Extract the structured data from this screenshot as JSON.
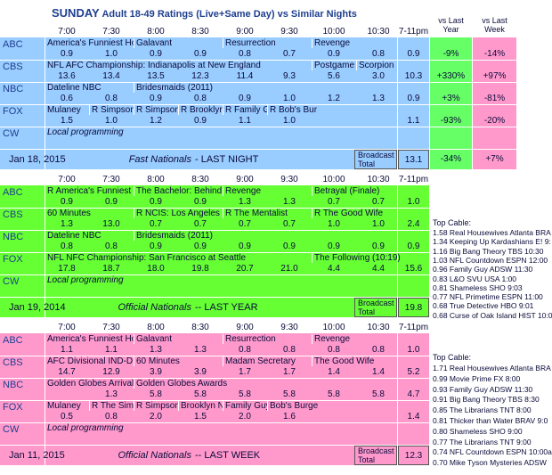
{
  "header": {
    "day": "SUNDAY",
    "title": "Adult 18-49 Ratings (Live+Same Day) vs Similar Nights"
  },
  "time_slots": [
    "7:00",
    "7:30",
    "8:00",
    "8:30",
    "9:00",
    "9:30",
    "10:00",
    "10:30"
  ],
  "total_header": "7-11pm",
  "vs_year_header": "vs Last Year",
  "vs_week_header": "vs Last Week",
  "blocks": [
    {
      "rows": [
        {
          "network": "ABC",
          "shows": [
            "America's Funniest Home",
            null,
            "Galavant",
            null,
            "Resurrection",
            null,
            "Revenge",
            null
          ],
          "ratings": [
            "0.9",
            "1.0",
            "0.9",
            "0.9",
            "0.8",
            "0.7",
            "0.9",
            "0.8"
          ],
          "total": "0.9",
          "vs_year": "-9%",
          "vs_week": "-14%"
        },
        {
          "network": "CBS",
          "shows": [
            "NFL AFC Championship: Indianapolis at New England",
            null,
            null,
            null,
            null,
            null,
            "Postgame",
            "Scorpion"
          ],
          "ratings": [
            "13.6",
            "13.4",
            "13.5",
            "12.3",
            "11.4",
            "9.3",
            "5.6",
            "3.0"
          ],
          "total": "10.3",
          "vs_year": "+330%",
          "vs_week": "+97%"
        },
        {
          "network": "NBC",
          "shows": [
            "Dateline NBC",
            null,
            "Bridesmaids (2011)",
            null,
            null,
            null,
            null,
            null
          ],
          "ratings": [
            "0.6",
            "0.8",
            "0.9",
            "0.8",
            "0.9",
            "1.0",
            "1.2",
            "1.3"
          ],
          "total": "0.9",
          "vs_year": "+3%",
          "vs_week": "-81%"
        },
        {
          "network": "FOX",
          "shows": [
            "Mulaney",
            "R Simpsons",
            "R Simpsons",
            "R Brooklyn N",
            "R Family Gu",
            "R Bob's Bur",
            null,
            null
          ],
          "ratings": [
            "1.5",
            "1.0",
            "1.2",
            "0.9",
            "1.1",
            "1.0",
            null,
            null
          ],
          "total": "1.1",
          "vs_year": "-93%",
          "vs_week": "-20%"
        },
        {
          "network": "CW",
          "shows": [
            "Local programming",
            null,
            null,
            null,
            null,
            null,
            null,
            null
          ]
        }
      ],
      "date": "Jan 18, 2015",
      "label": "Fast Nationals",
      "sublabel": "- LAST NIGHT",
      "broadcast_label": "Broadcast Total",
      "total": "13.1",
      "vs_year": "-34%",
      "vs_week": "+7%"
    },
    {
      "rows": [
        {
          "network": "ABC",
          "shows": [
            "R America's Funniest Ho",
            null,
            "The Bachelor: Behind the",
            null,
            "Revenge",
            null,
            "Betrayal (Finale)",
            null
          ],
          "ratings": [
            "0.9",
            "0.9",
            "0.9",
            "0.9",
            "1.3",
            "1.3",
            "0.7",
            "0.7"
          ],
          "total": "1.0"
        },
        {
          "network": "CBS",
          "shows": [
            "60 Minutes",
            null,
            "R NCIS: Los Angeles",
            null,
            "R The Mentalist",
            null,
            "R The Good Wife",
            null
          ],
          "ratings": [
            "1.3",
            "13.0",
            "0.7",
            "0.7",
            "0.7",
            "0.7",
            "1.0",
            "1.0"
          ],
          "total": "2.4"
        },
        {
          "network": "NBC",
          "shows": [
            "Dateline NBC",
            null,
            "Bridesmaids (2011)",
            null,
            null,
            null,
            null,
            null
          ],
          "ratings": [
            "0.8",
            "0.8",
            "0.9",
            "0.9",
            "0.9",
            "0.9",
            "0.9",
            "0.9"
          ],
          "total": "0.9"
        },
        {
          "network": "FOX",
          "shows": [
            "NFL NFC Championship: San Francisco at Seattle",
            null,
            null,
            null,
            null,
            null,
            "The Following (10:19)",
            null
          ],
          "ratings": [
            "17.8",
            "18.7",
            "18.0",
            "19.8",
            "20.7",
            "21.0",
            "4.4",
            "4.4"
          ],
          "total": "15.6"
        },
        {
          "network": "CW",
          "shows": [
            "Local programming",
            null,
            null,
            null,
            null,
            null,
            null,
            null
          ]
        }
      ],
      "date": "Jan 19, 2014",
      "label": "Official Nationals",
      "sublabel": "-- LAST YEAR",
      "broadcast_label": "Broadcast Total",
      "total": "19.8",
      "cable_title": "Top Cable:",
      "cable": [
        "1.58 Real Housewives Atlanta BRA",
        "1.34 Keeping Up Kardashians E! 9:",
        "1.16 Big Bang Theory TBS 10:30",
        "1.03 NFL Countdown ESPN 12:00",
        "0.96 Family Guy ADSW 11:30",
        "0.83 L&O SVU USA 1:00",
        "0.81 Shameless SHO 9:03",
        "0.77 NFL Primetime ESPN 11:00",
        "0.68 True Detective HBO 9:01",
        "0.68 Curse of Oak Island HIST 10:0"
      ]
    },
    {
      "rows": [
        {
          "network": "ABC",
          "shows": [
            "America's Funniest Home",
            null,
            "Galavant",
            null,
            "Resurrection",
            null,
            "Revenge",
            null
          ],
          "ratings": [
            "1.1",
            "1.1",
            "1.3",
            "1.3",
            "0.8",
            "0.8",
            "0.8",
            "0.8"
          ],
          "total": "1.0"
        },
        {
          "network": "CBS",
          "shows": [
            "AFC Divisional IND-DEN",
            null,
            "60 Minutes",
            null,
            "Madam Secretary",
            null,
            "The Good Wife",
            null
          ],
          "ratings": [
            "14.7",
            "12.9",
            "3.9",
            "3.9",
            "1.7",
            "1.7",
            "1.4",
            "1.4"
          ],
          "total": "5.2"
        },
        {
          "network": "NBC",
          "shows": [
            "Golden Globes Arrivals S",
            null,
            "Golden Globes Awards",
            null,
            null,
            null,
            null,
            null
          ],
          "ratings": [
            null,
            "1.3",
            "5.8",
            "5.8",
            "5.8",
            "5.8",
            "5.8",
            "5.8"
          ],
          "total": "4.7"
        },
        {
          "network": "FOX",
          "shows": [
            "Mulaney",
            "R The Simps",
            "R Simpsons",
            "Brooklyn Nin",
            "Family Guy",
            "Bob's Burge",
            null,
            null
          ],
          "ratings": [
            "0.5",
            "0.8",
            "2.0",
            "1.5",
            "2.0",
            "1.6",
            null,
            null
          ],
          "total": "1.4"
        },
        {
          "network": "CW",
          "shows": [
            "Local programming",
            null,
            null,
            null,
            null,
            null,
            null,
            null
          ]
        }
      ],
      "date": "Jan 11, 2015",
      "label": "Official Nationals",
      "sublabel": "-- LAST WEEK",
      "broadcast_label": "Broadcast Total",
      "total": "12.3",
      "cable_title": "Top Cable:",
      "cable": [
        "1.71 Real Housewives Atlanta BRA",
        "0.99 Movie Prime FX 8:00",
        "0.93 Family Guy ADSW 11:30",
        "0.91 Big Bang Theory TBS 8:30",
        "0.85 The Librarians TNT 8:00",
        "0.81 Thicker than Water BRAV 9:0",
        "0.80 Shameless SHO 9:00",
        "0.77 The Librarians TNT 9:00",
        "0.74 NFL Countdown ESPN 10:00a",
        "0.70 Mike Tyson Mysteries ADSW"
      ]
    }
  ]
}
